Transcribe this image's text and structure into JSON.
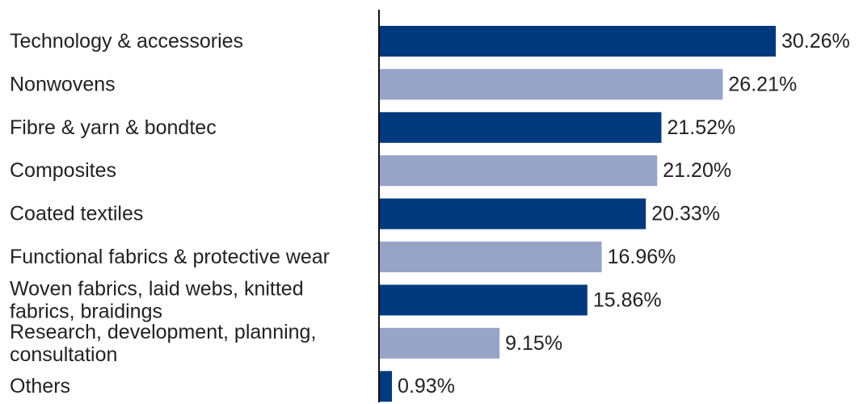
{
  "chart_data": {
    "type": "bar",
    "orientation": "horizontal",
    "categories": [
      "Technology & accessories",
      "Nonwovens",
      "Fibre & yarn & bondtec",
      "Composites",
      "Coated textiles",
      "Functional fabrics & protective wear",
      "Woven fabrics, laid webs, knitted fabrics, braidings",
      "Research, development, planning, consultation",
      "Others"
    ],
    "label_lines": [
      [
        "Technology & accessories"
      ],
      [
        "Nonwovens"
      ],
      [
        "Fibre & yarn & bondtec"
      ],
      [
        "Composites"
      ],
      [
        "Coated textiles"
      ],
      [
        "Functional fabrics & protective wear"
      ],
      [
        "Woven fabrics, laid webs, knitted",
        "fabrics, braidings"
      ],
      [
        "Research, development, planning,",
        "consultation"
      ],
      [
        "Others"
      ]
    ],
    "values": [
      30.26,
      26.21,
      21.52,
      21.2,
      20.33,
      16.96,
      15.86,
      9.15,
      0.93
    ],
    "value_labels": [
      "30.26%",
      "26.21%",
      "21.52%",
      "21.20%",
      "20.33%",
      "16.96%",
      "15.86%",
      "9.15%",
      "0.93%"
    ],
    "xlim": [
      0,
      30.26
    ],
    "grid": false,
    "colors": {
      "dark": "#003a7e",
      "light": "#97a4c8",
      "axis": "#111111",
      "text": "#222222"
    }
  }
}
